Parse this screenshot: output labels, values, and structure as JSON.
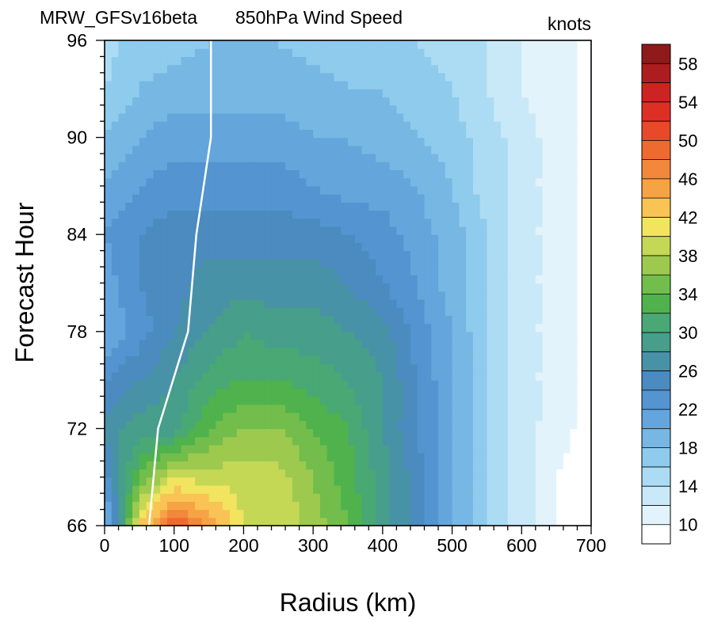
{
  "chart_data": {
    "type": "heatmap",
    "title_left": "MRW_GFSv16beta",
    "title_center": "850hPa Wind Speed",
    "units": "knots",
    "xlabel": "Radius (km)",
    "ylabel": "Forecast Hour",
    "xlim": [
      0,
      700
    ],
    "ylim": [
      66,
      96
    ],
    "x_ticks": [
      "0",
      "100",
      "200",
      "300",
      "400",
      "500",
      "600",
      "700"
    ],
    "y_ticks": [
      "66",
      "72",
      "78",
      "84",
      "90",
      "96"
    ],
    "colorbar": {
      "levels": [
        10,
        12,
        14,
        16,
        18,
        20,
        22,
        24,
        26,
        28,
        30,
        32,
        34,
        36,
        38,
        40,
        42,
        44,
        46,
        48,
        50,
        52,
        54,
        56,
        58,
        60
      ],
      "labels": [
        "10",
        "14",
        "18",
        "22",
        "26",
        "30",
        "34",
        "38",
        "42",
        "46",
        "50",
        "54",
        "58"
      ],
      "colors": [
        "#ffffff",
        "#e2f3fc",
        "#c9e9f8",
        "#acdcf4",
        "#8ecbec",
        "#77b7e3",
        "#64a5dc",
        "#5394d1",
        "#4b8bbf",
        "#4892a8",
        "#479e8a",
        "#49a874",
        "#4fb24d",
        "#72bd4b",
        "#9dc94e",
        "#c4d856",
        "#f2e45f",
        "#f9c355",
        "#f6a346",
        "#f3873b",
        "#ef6a30",
        "#e84928",
        "#de2f25",
        "#cc2424",
        "#ad1c1f",
        "#8e1a1a"
      ]
    },
    "radii": [
      0,
      50,
      100,
      150,
      200,
      250,
      300,
      350,
      400,
      450,
      500,
      550,
      600,
      650,
      700
    ],
    "hours": [
      66,
      69,
      72,
      75,
      78,
      81,
      84,
      87,
      90,
      93,
      96
    ],
    "wind_speed": [
      [
        20,
        44,
        52,
        48,
        42,
        42,
        39,
        36,
        31,
        27,
        22,
        18,
        15,
        12,
        11
      ],
      [
        25,
        36,
        42,
        41,
        41,
        41,
        38,
        35,
        31,
        27,
        22,
        18,
        15,
        12,
        11
      ],
      [
        29,
        31,
        31,
        36,
        38,
        38,
        36,
        34,
        30,
        26,
        22,
        18,
        15,
        13,
        11
      ],
      [
        26,
        28,
        30,
        33,
        34,
        34,
        33,
        32,
        30,
        26,
        22,
        18,
        15,
        13,
        11
      ],
      [
        22,
        25,
        28,
        30,
        32,
        31,
        31,
        30,
        29,
        25,
        22,
        18,
        15,
        13,
        11
      ],
      [
        23,
        26,
        27,
        29,
        29,
        29,
        29,
        28,
        26,
        24,
        21,
        18,
        15,
        13,
        11
      ],
      [
        24,
        26,
        27,
        27,
        27,
        27,
        27,
        26,
        25,
        23,
        21,
        18,
        15,
        13,
        11
      ],
      [
        22,
        24,
        25,
        25,
        25,
        25,
        24,
        23,
        23,
        22,
        20,
        17,
        15,
        13,
        11
      ],
      [
        20,
        22,
        23,
        23,
        23,
        23,
        22,
        22,
        21,
        20,
        19,
        17,
        15,
        13,
        11
      ],
      [
        18,
        20,
        21,
        21,
        21,
        21,
        21,
        20,
        20,
        19,
        18,
        16,
        14,
        13,
        11
      ],
      [
        17,
        19,
        19,
        20,
        20,
        20,
        19,
        19,
        19,
        18,
        17,
        16,
        14,
        13,
        11
      ]
    ],
    "rmw_line": {
      "x": [
        64,
        77,
        120,
        132,
        153,
        153
      ],
      "y": [
        66,
        72,
        78,
        84,
        90,
        96
      ]
    }
  }
}
